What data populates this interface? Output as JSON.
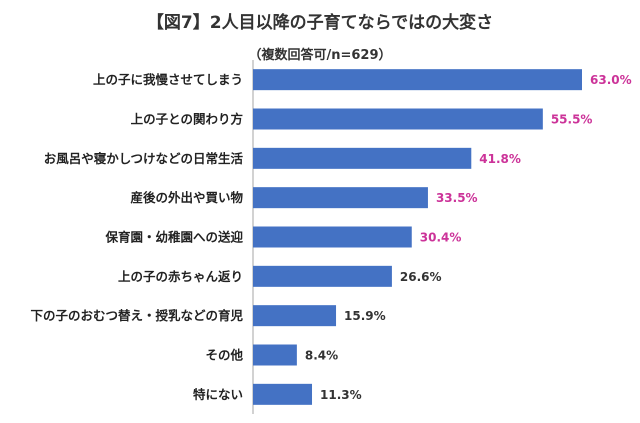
{
  "chart_data": {
    "type": "bar",
    "orientation": "horizontal",
    "title": "【図7】2人目以降の子育てならではの大変さ",
    "subtitle": "（複数回答可/n=629）",
    "categories": [
      "上の子に我慢させてしまう",
      "上の子との関わり方",
      "お風呂や寝かしつけなどの日常生活",
      "産後の外出や買い物",
      "保育園・幼稚園への送迎",
      "上の子の赤ちゃん返り",
      "下の子のおむつ替え・授乳などの育児",
      "その他",
      "特にない"
    ],
    "values": [
      63.0,
      55.5,
      41.8,
      33.5,
      30.4,
      26.6,
      15.9,
      8.4,
      11.3
    ],
    "value_labels": [
      "63.0%",
      "55.5%",
      "41.8%",
      "33.5%",
      "30.4%",
      "26.6%",
      "15.9%",
      "8.4%",
      "11.3%"
    ],
    "xlim": [
      0,
      70
    ],
    "bar_color": "#4472C4",
    "highlight_label_color": "#CC3399",
    "normal_label_color": "#333333",
    "highlight_count": 5,
    "axis_color": "#A6A6A6"
  }
}
